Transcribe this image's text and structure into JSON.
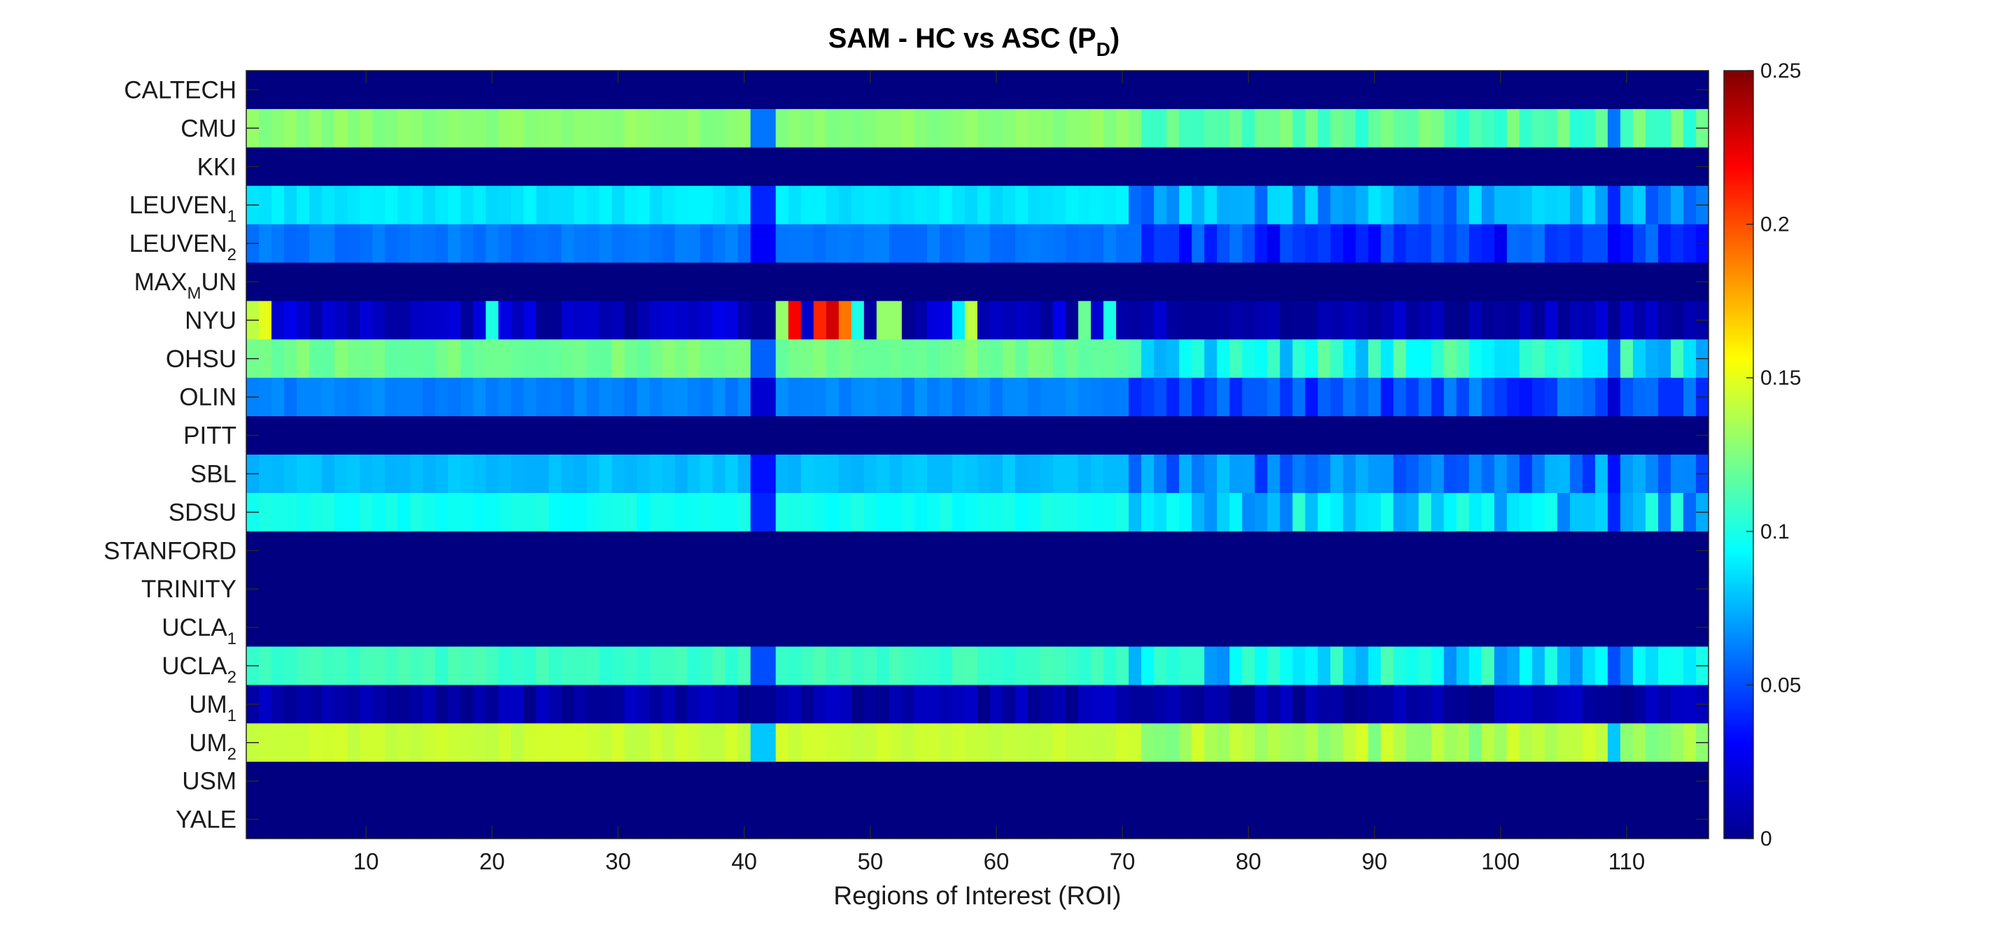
{
  "chart_data": {
    "type": "heatmap",
    "title": {
      "main": "SAM - HC vs ASC (P",
      "subscript": "D",
      "close": ")"
    },
    "xlabel": "Regions of Interest (ROI)",
    "x_ticks": [
      10,
      20,
      30,
      40,
      50,
      60,
      70,
      80,
      90,
      100,
      110
    ],
    "x_range": [
      1,
      116
    ],
    "rows": [
      {
        "label": "CALTECH",
        "sub": ""
      },
      {
        "label": "CMU",
        "sub": ""
      },
      {
        "label": "KKI",
        "sub": ""
      },
      {
        "label": "LEUVEN",
        "sub": "1"
      },
      {
        "label": "LEUVEN",
        "sub": "2"
      },
      {
        "label": "MAX",
        "sub": "M",
        "tail": "UN"
      },
      {
        "label": "NYU",
        "sub": ""
      },
      {
        "label": "OHSU",
        "sub": ""
      },
      {
        "label": "OLIN",
        "sub": ""
      },
      {
        "label": "PITT",
        "sub": ""
      },
      {
        "label": "SBL",
        "sub": ""
      },
      {
        "label": "SDSU",
        "sub": ""
      },
      {
        "label": "STANFORD",
        "sub": ""
      },
      {
        "label": "TRINITY",
        "sub": ""
      },
      {
        "label": "UCLA",
        "sub": "1"
      },
      {
        "label": "UCLA",
        "sub": "2"
      },
      {
        "label": "UM",
        "sub": "1"
      },
      {
        "label": "UM",
        "sub": "2"
      },
      {
        "label": "USM",
        "sub": ""
      },
      {
        "label": "YALE",
        "sub": ""
      }
    ],
    "row_profiles": [
      {
        "base": 0.0,
        "vary": 0.0,
        "gap": 0.0,
        "sec": 0.0,
        "secvary": 0.0
      },
      {
        "base": 0.128,
        "vary": 0.004,
        "gap": 0.06,
        "sec": 0.115,
        "secvary": 0.012
      },
      {
        "base": 0.0,
        "vary": 0.0,
        "gap": 0.0,
        "sec": 0.0,
        "secvary": 0.0
      },
      {
        "base": 0.088,
        "vary": 0.004,
        "gap": 0.04,
        "sec": 0.07,
        "secvary": 0.018
      },
      {
        "base": 0.06,
        "vary": 0.004,
        "gap": 0.03,
        "sec": 0.045,
        "secvary": 0.018
      },
      {
        "base": 0.0,
        "vary": 0.0,
        "gap": 0.0,
        "sec": 0.0,
        "secvary": 0.0
      },
      {
        "base": 0.015,
        "vary": 0.012,
        "gap": 0.005,
        "sec": 0.012,
        "secvary": 0.01
      },
      {
        "base": 0.122,
        "vary": 0.006,
        "gap": 0.055,
        "sec": 0.095,
        "secvary": 0.025
      },
      {
        "base": 0.063,
        "vary": 0.004,
        "gap": 0.02,
        "sec": 0.05,
        "secvary": 0.015
      },
      {
        "base": 0.0,
        "vary": 0.0,
        "gap": 0.0,
        "sec": 0.0,
        "secvary": 0.0
      },
      {
        "base": 0.078,
        "vary": 0.004,
        "gap": 0.035,
        "sec": 0.06,
        "secvary": 0.02
      },
      {
        "base": 0.097,
        "vary": 0.004,
        "gap": 0.04,
        "sec": 0.08,
        "secvary": 0.025
      },
      {
        "base": 0.0,
        "vary": 0.0,
        "gap": 0.0,
        "sec": 0.0,
        "secvary": 0.0
      },
      {
        "base": 0.0,
        "vary": 0.0,
        "gap": 0.0,
        "sec": 0.0,
        "secvary": 0.0
      },
      {
        "base": 0.0,
        "vary": 0.0,
        "gap": 0.0,
        "sec": 0.0,
        "secvary": 0.0
      },
      {
        "base": 0.108,
        "vary": 0.005,
        "gap": 0.05,
        "sec": 0.09,
        "secvary": 0.025
      },
      {
        "base": 0.01,
        "vary": 0.008,
        "gap": 0.005,
        "sec": 0.01,
        "secvary": 0.008
      },
      {
        "base": 0.143,
        "vary": 0.003,
        "gap": 0.08,
        "sec": 0.135,
        "secvary": 0.012
      },
      {
        "base": 0.0,
        "vary": 0.0,
        "gap": 0.0,
        "sec": 0.0,
        "secvary": 0.0
      },
      {
        "base": 0.0,
        "vary": 0.0,
        "gap": 0.0,
        "sec": 0.0,
        "secvary": 0.0
      }
    ],
    "nyu_highlights": [
      {
        "roi": 1,
        "value": 0.14
      },
      {
        "roi": 2,
        "value": 0.15
      },
      {
        "roi": 20,
        "value": 0.1
      },
      {
        "roi": 43,
        "value": 0.13
      },
      {
        "roi": 44,
        "value": 0.22
      },
      {
        "roi": 46,
        "value": 0.21
      },
      {
        "roi": 47,
        "value": 0.23
      },
      {
        "roi": 48,
        "value": 0.19
      },
      {
        "roi": 49,
        "value": 0.1
      },
      {
        "roi": 51,
        "value": 0.13
      },
      {
        "roi": 52,
        "value": 0.13
      },
      {
        "roi": 58,
        "value": 0.14
      },
      {
        "roi": 57,
        "value": 0.09
      },
      {
        "roi": 67,
        "value": 0.12
      },
      {
        "roi": 69,
        "value": 0.1
      }
    ],
    "colorbar": {
      "min": 0,
      "max": 0.25,
      "ticks": [
        0,
        0.05,
        0.1,
        0.15,
        0.2,
        0.25
      ],
      "colormap": "jet"
    }
  }
}
